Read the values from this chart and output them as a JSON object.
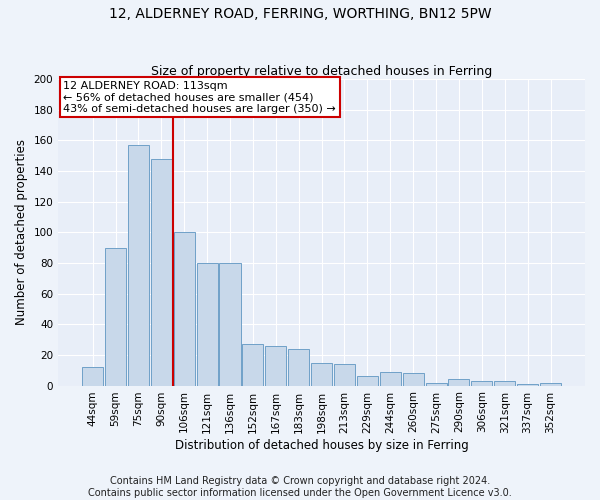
{
  "title": "12, ALDERNEY ROAD, FERRING, WORTHING, BN12 5PW",
  "subtitle": "Size of property relative to detached houses in Ferring",
  "xlabel": "Distribution of detached houses by size in Ferring",
  "ylabel": "Number of detached properties",
  "categories": [
    "44sqm",
    "59sqm",
    "75sqm",
    "90sqm",
    "106sqm",
    "121sqm",
    "136sqm",
    "152sqm",
    "167sqm",
    "183sqm",
    "198sqm",
    "213sqm",
    "229sqm",
    "244sqm",
    "260sqm",
    "275sqm",
    "290sqm",
    "306sqm",
    "321sqm",
    "337sqm",
    "352sqm"
  ],
  "values": [
    12,
    90,
    157,
    148,
    100,
    80,
    80,
    27,
    26,
    24,
    15,
    14,
    6,
    9,
    8,
    2,
    4,
    3,
    3,
    1,
    2
  ],
  "bar_color": "#c8d8ea",
  "bar_edge_color": "#6fa0c8",
  "vline_color": "#cc0000",
  "vline_x": 3.5,
  "property_label": "12 ALDERNEY ROAD: 113sqm",
  "annotation_line1": "← 56% of detached houses are smaller (454)",
  "annotation_line2": "43% of semi-detached houses are larger (350) →",
  "footnote1": "Contains HM Land Registry data © Crown copyright and database right 2024.",
  "footnote2": "Contains public sector information licensed under the Open Government Licence v3.0.",
  "ylim": [
    0,
    200
  ],
  "yticks": [
    0,
    20,
    40,
    60,
    80,
    100,
    120,
    140,
    160,
    180,
    200
  ],
  "fig_bg_color": "#eef3fa",
  "ax_bg_color": "#e8eef8",
  "grid_color": "#ffffff",
  "title_fontsize": 10,
  "subtitle_fontsize": 9,
  "axis_label_fontsize": 8.5,
  "tick_fontsize": 7.5,
  "footnote_fontsize": 7,
  "annotation_fontsize": 8
}
